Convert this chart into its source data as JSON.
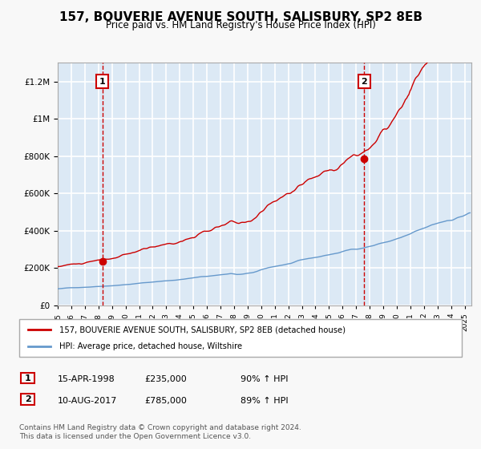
{
  "title": "157, BOUVERIE AVENUE SOUTH, SALISBURY, SP2 8EB",
  "subtitle": "Price paid vs. HM Land Registry's House Price Index (HPI)",
  "title_fontsize": 11,
  "subtitle_fontsize": 9,
  "background_color": "#dce9f5",
  "plot_bg_color": "#dce9f5",
  "red_line_color": "#cc0000",
  "blue_line_color": "#6699cc",
  "grid_color": "#ffffff",
  "vline_color": "#cc0000",
  "ylim": [
    0,
    1300000
  ],
  "yticks": [
    0,
    200000,
    400000,
    600000,
    800000,
    1000000,
    1200000
  ],
  "ytick_labels": [
    "£0",
    "£200K",
    "£400K",
    "£600K",
    "£800K",
    "£1M",
    "£1.2M"
  ],
  "sale1_date_num": 1998.29,
  "sale1_price": 235000,
  "sale2_date_num": 2017.6,
  "sale2_price": 785000,
  "legend_line1": "157, BOUVERIE AVENUE SOUTH, SALISBURY, SP2 8EB (detached house)",
  "legend_line2": "HPI: Average price, detached house, Wiltshire",
  "table_row1": [
    "1",
    "15-APR-1998",
    "£235,000",
    "90% ↑ HPI"
  ],
  "table_row2": [
    "2",
    "10-AUG-2017",
    "£785,000",
    "89% ↑ HPI"
  ],
  "footer": "Contains HM Land Registry data © Crown copyright and database right 2024.\nThis data is licensed under the Open Government Licence v3.0.",
  "xstart": 1995.0,
  "xend": 2025.5
}
